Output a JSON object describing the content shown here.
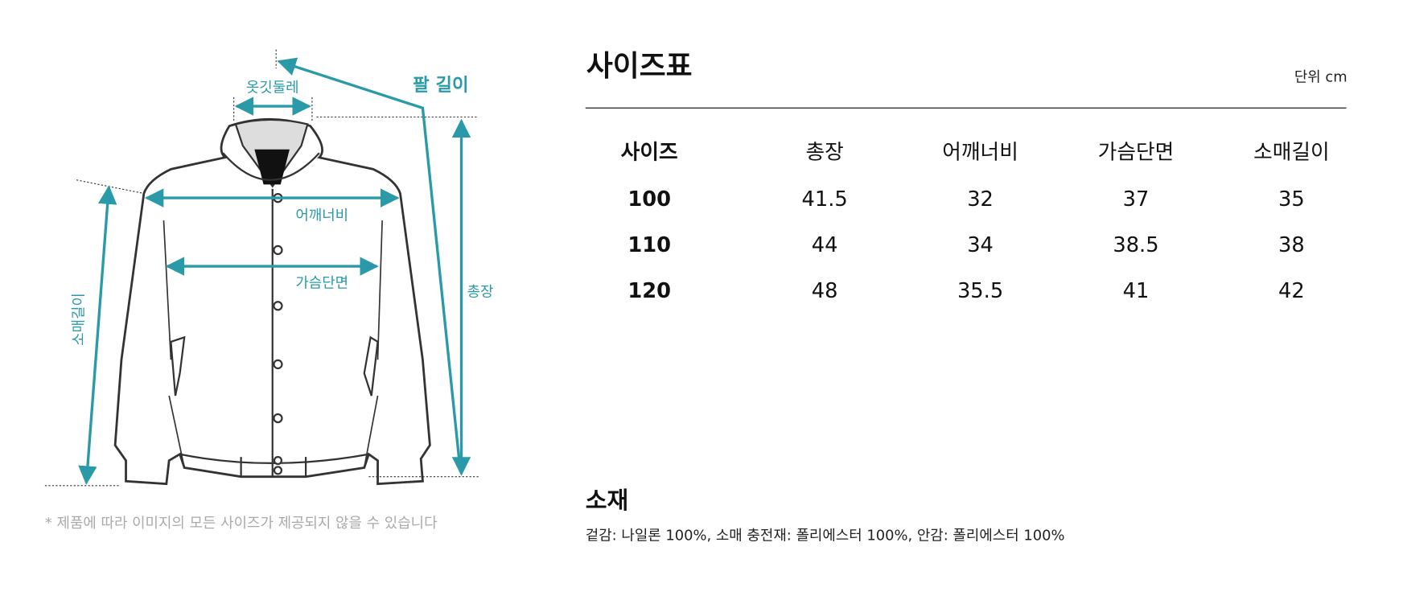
{
  "diagram": {
    "labels": {
      "collar": "옷깃둘레",
      "arm": "팔 길이",
      "shoulder": "어깨너비",
      "chest": "가슴단면",
      "length": "총장",
      "sleeve": "소매길이"
    },
    "note": "* 제품에 따라 이미지의 모든 사이즈가 제공되지 않을 수 있습니다"
  },
  "size_table": {
    "title": "사이즈표",
    "unit": "단위 cm",
    "header": [
      "사이즈",
      "총장",
      "어깨너비",
      "가슴단면",
      "소매길이"
    ],
    "rows": [
      [
        "100",
        "41.5",
        "32",
        "37",
        "35"
      ],
      [
        "110",
        "44",
        "34",
        "38.5",
        "38"
      ],
      [
        "120",
        "48",
        "35.5",
        "41",
        "42"
      ]
    ]
  },
  "material": {
    "title": "소재",
    "text": "겉감: 나일론 100%, 소매 충전재: 폴리에스터 100%, 안감: 폴리에스터 100%"
  }
}
